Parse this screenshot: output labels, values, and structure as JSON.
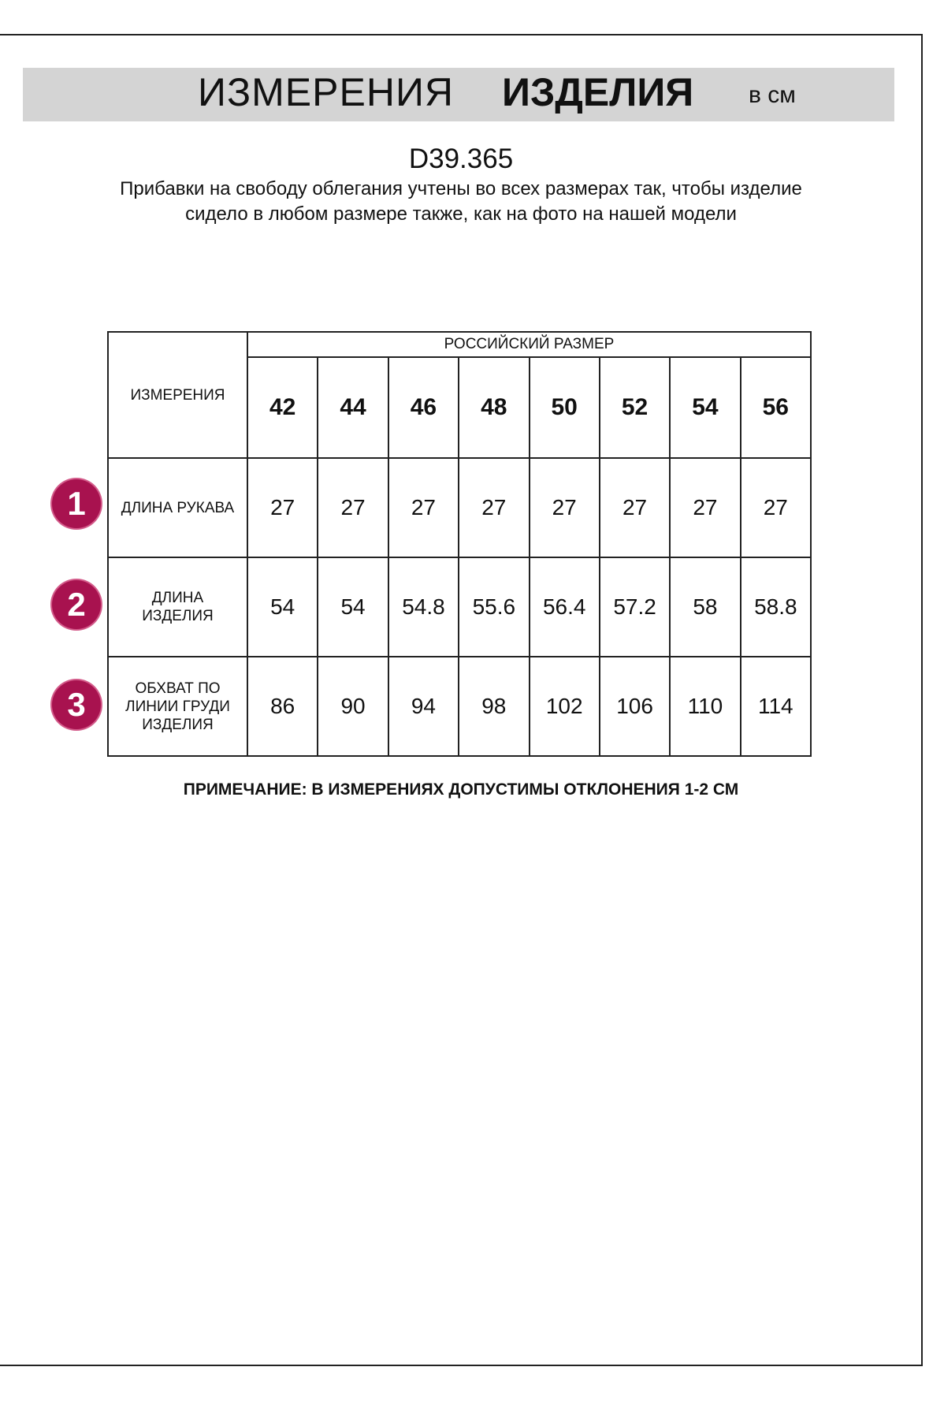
{
  "header": {
    "title_regular": "ИЗМЕРЕНИЯ",
    "title_bold": "ИЗДЕЛИЯ",
    "unit": "в см",
    "band_color": "#d4d4d4"
  },
  "article": "D39.365",
  "description": "Прибавки на свободу облегания учтены во всех размерах так, чтобы изделие сидело в любом размере также, как на фото на нашей модели",
  "table": {
    "measurements_header": "ИЗМЕРЕНИЯ",
    "size_group_header": "РОССИЙСКИЙ РАЗМЕР",
    "sizes": [
      "42",
      "44",
      "46",
      "48",
      "50",
      "52",
      "54",
      "56"
    ],
    "rows": [
      {
        "number": "1",
        "label": "ДЛИНА РУКАВА",
        "values": [
          "27",
          "27",
          "27",
          "27",
          "27",
          "27",
          "27",
          "27"
        ]
      },
      {
        "number": "2",
        "label": "ДЛИНА ИЗДЕЛИЯ",
        "values": [
          "54",
          "54",
          "54.8",
          "55.6",
          "56.4",
          "57.2",
          "58",
          "58.8"
        ]
      },
      {
        "number": "3",
        "label": "ОБХВАТ ПО ЛИНИИ ГРУДИ ИЗДЕЛИЯ",
        "values": [
          "86",
          "90",
          "94",
          "98",
          "102",
          "106",
          "110",
          "114"
        ]
      }
    ],
    "badge_color": "#a8124f"
  },
  "note": "ПРИМЕЧАНИЕ: В ИЗМЕРЕНИЯХ ДОПУСТИМЫ ОТКЛОНЕНИЯ 1-2 СМ"
}
